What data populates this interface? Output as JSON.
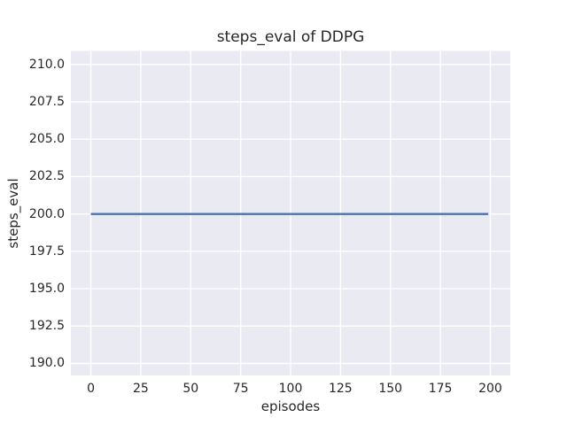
{
  "chart_data": {
    "type": "line",
    "title": "steps_eval of DDPG",
    "xlabel": "episodes",
    "ylabel": "steps_eval",
    "x_tick_labels": [
      "0",
      "25",
      "50",
      "75",
      "100",
      "125",
      "150",
      "175",
      "200"
    ],
    "y_tick_labels": [
      "190.0",
      "192.5",
      "195.0",
      "197.5",
      "200.0",
      "202.5",
      "205.0",
      "207.5",
      "210.0"
    ],
    "xlim": [
      -10,
      210
    ],
    "ylim": [
      189.2,
      210.9
    ],
    "grid": true,
    "legend": "none",
    "series": [
      {
        "name": "steps_eval",
        "x": [
          0,
          199
        ],
        "y": [
          200,
          200
        ],
        "color": "#4c72b0"
      }
    ],
    "style": {
      "plot_background": "#eaeaf2",
      "grid_color": "#ffffff",
      "figure_background": "#ffffff",
      "text_color": "#262626",
      "line_color": "#4c72b0"
    }
  }
}
